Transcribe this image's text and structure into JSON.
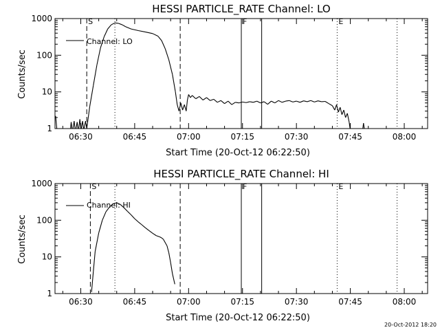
{
  "chart_data": [
    {
      "type": "line",
      "title": "HESSI PARTICLE_RATE Channel: LO",
      "xlabel": "Start Time (20-Oct-12 06:22:50)",
      "ylabel": "Counts/sec",
      "yscale": "log",
      "ylim": [
        1,
        1000
      ],
      "xlim": [
        "06:22:50",
        "08:06:30"
      ],
      "x_ticks": [
        "06:30",
        "06:45",
        "07:00",
        "07:15",
        "07:30",
        "07:45",
        "08:00"
      ],
      "y_ticks": [
        "1",
        "10",
        "100",
        "1000"
      ],
      "grid": false,
      "legend": "top-left",
      "series": [
        {
          "name": "Channel: LO",
          "color": "#000000",
          "points": [
            [
              "06:23:00",
              2.2
            ],
            [
              "06:23:20",
              1.0
            ],
            [
              "06:24:00",
              0.7
            ],
            [
              "06:27:00",
              0.7
            ],
            [
              "06:27:20",
              1.5
            ],
            [
              "06:27:40",
              0.8
            ],
            [
              "06:28:10",
              1.6
            ],
            [
              "06:28:30",
              0.8
            ],
            [
              "06:29:00",
              1.5
            ],
            [
              "06:29:20",
              0.8
            ],
            [
              "06:29:45",
              1.8
            ],
            [
              "06:30:05",
              0.9
            ],
            [
              "06:30:30",
              1.6
            ],
            [
              "06:30:50",
              0.9
            ],
            [
              "06:31:20",
              1.6
            ],
            [
              "06:31:40",
              1.0
            ],
            [
              "06:32:30",
              4
            ],
            [
              "06:33:30",
              15
            ],
            [
              "06:34:30",
              55
            ],
            [
              "06:35:30",
              160
            ],
            [
              "06:36:30",
              320
            ],
            [
              "06:37:30",
              520
            ],
            [
              "06:38:30",
              680
            ],
            [
              "06:39:30",
              760
            ],
            [
              "06:40:30",
              740
            ],
            [
              "06:41:30",
              680
            ],
            [
              "06:42:30",
              600
            ],
            [
              "06:44:00",
              520
            ],
            [
              "06:46:00",
              470
            ],
            [
              "06:48:00",
              430
            ],
            [
              "06:50:00",
              390
            ],
            [
              "06:51:30",
              330
            ],
            [
              "06:52:30",
              250
            ],
            [
              "06:53:30",
              150
            ],
            [
              "06:54:30",
              75
            ],
            [
              "06:55:30",
              30
            ],
            [
              "06:56:20",
              10
            ],
            [
              "06:56:50",
              4.5
            ],
            [
              "06:57:20",
              3.0
            ],
            [
              "06:57:50",
              5.0
            ],
            [
              "06:58:20",
              3.2
            ],
            [
              "06:58:50",
              4.5
            ],
            [
              "06:59:20",
              3.0
            ],
            [
              "06:59:40",
              6
            ],
            [
              "07:00:00",
              8.5
            ],
            [
              "07:00:30",
              7.0
            ],
            [
              "07:01:00",
              8.0
            ],
            [
              "07:02:00",
              6.5
            ],
            [
              "07:03:00",
              7.5
            ],
            [
              "07:04:00",
              6.0
            ],
            [
              "07:05:00",
              7.0
            ],
            [
              "07:06:00",
              5.8
            ],
            [
              "07:07:00",
              6.3
            ],
            [
              "07:08:00",
              5.2
            ],
            [
              "07:09:00",
              5.8
            ],
            [
              "07:10:00",
              4.8
            ],
            [
              "07:11:00",
              5.6
            ],
            [
              "07:12:00",
              4.5
            ],
            [
              "07:13:00",
              5.2
            ],
            [
              "07:14:00",
              5.0
            ],
            [
              "07:15:00",
              5.3
            ],
            [
              "07:16:00",
              5.1
            ],
            [
              "07:17:00",
              5.4
            ],
            [
              "07:18:00",
              5.2
            ],
            [
              "07:19:00",
              5.6
            ],
            [
              "07:20:00",
              5.0
            ],
            [
              "07:21:00",
              5.4
            ],
            [
              "07:22:00",
              4.6
            ],
            [
              "07:23:00",
              5.6
            ],
            [
              "07:24:00",
              5.0
            ],
            [
              "07:25:00",
              5.8
            ],
            [
              "07:26:00",
              5.2
            ],
            [
              "07:27:00",
              5.6
            ],
            [
              "07:28:00",
              5.8
            ],
            [
              "07:29:00",
              5.3
            ],
            [
              "07:30:00",
              5.6
            ],
            [
              "07:31:00",
              5.2
            ],
            [
              "07:32:00",
              5.7
            ],
            [
              "07:33:00",
              5.4
            ],
            [
              "07:34:00",
              5.8
            ],
            [
              "07:35:00",
              5.3
            ],
            [
              "07:36:00",
              5.7
            ],
            [
              "07:37:00",
              5.4
            ],
            [
              "07:38:00",
              5.5
            ],
            [
              "07:39:00",
              4.8
            ],
            [
              "07:40:00",
              4.2
            ],
            [
              "07:40:40",
              3.2
            ],
            [
              "07:41:10",
              4.5
            ],
            [
              "07:41:40",
              2.8
            ],
            [
              "07:42:10",
              3.8
            ],
            [
              "07:42:40",
              2.4
            ],
            [
              "07:43:10",
              3.2
            ],
            [
              "07:43:40",
              2.0
            ],
            [
              "07:44:10",
              2.6
            ],
            [
              "07:44:40",
              1.5
            ],
            [
              "07:45:00",
              0.9
            ],
            [
              "07:48:20",
              0.8
            ],
            [
              "07:48:40",
              1.4
            ],
            [
              "07:49:00",
              0.8
            ]
          ]
        }
      ],
      "markers": [
        {
          "time": "06:31:40",
          "style": "dashed",
          "label": "S"
        },
        {
          "time": "06:39:30",
          "style": "dotted",
          "label": ""
        },
        {
          "time": "06:57:40",
          "style": "dashed",
          "label": ""
        },
        {
          "time": "07:14:40",
          "style": "solid",
          "label": "F"
        },
        {
          "time": "07:20:20",
          "style": "solid",
          "label": ""
        },
        {
          "time": "07:41:20",
          "style": "dotted",
          "label": "E"
        },
        {
          "time": "07:58:00",
          "style": "dotted",
          "label": ""
        }
      ]
    },
    {
      "type": "line",
      "title": "HESSI PARTICLE_RATE Channel: HI",
      "xlabel": "Start Time (20-Oct-12 06:22:50)",
      "ylabel": "Counts/sec",
      "yscale": "log",
      "ylim": [
        1,
        1000
      ],
      "xlim": [
        "06:22:50",
        "08:06:30"
      ],
      "x_ticks": [
        "06:30",
        "06:45",
        "07:00",
        "07:15",
        "07:30",
        "07:45",
        "08:00"
      ],
      "y_ticks": [
        "1",
        "10",
        "100",
        "1000"
      ],
      "grid": false,
      "legend": "top-left",
      "series": [
        {
          "name": "Channel: HI",
          "color": "#000000",
          "points": [
            [
              "06:33:00",
              1.1
            ],
            [
              "06:33:30",
              4
            ],
            [
              "06:34:00",
              14
            ],
            [
              "06:35:00",
              45
            ],
            [
              "06:36:00",
              100
            ],
            [
              "06:37:00",
              170
            ],
            [
              "06:38:00",
              230
            ],
            [
              "06:39:00",
              280
            ],
            [
              "06:40:00",
              300
            ],
            [
              "06:41:00",
              270
            ],
            [
              "06:42:00",
              220
            ],
            [
              "06:43:00",
              175
            ],
            [
              "06:44:00",
              140
            ],
            [
              "06:45:00",
              110
            ],
            [
              "06:46:00",
              90
            ],
            [
              "06:47:00",
              75
            ],
            [
              "06:48:00",
              62
            ],
            [
              "06:49:00",
              52
            ],
            [
              "06:50:00",
              44
            ],
            [
              "06:51:00",
              38
            ],
            [
              "06:52:00",
              35
            ],
            [
              "06:52:30",
              33
            ],
            [
              "06:53:00",
              30
            ],
            [
              "06:54:00",
              20
            ],
            [
              "06:54:30",
              13
            ],
            [
              "06:55:00",
              7
            ],
            [
              "06:55:30",
              3.5
            ],
            [
              "06:56:10",
              1.8
            ]
          ]
        }
      ],
      "markers": [
        {
          "time": "06:32:40",
          "style": "dashed",
          "label": "S"
        },
        {
          "time": "06:39:30",
          "style": "dotted",
          "label": ""
        },
        {
          "time": "06:57:40",
          "style": "dashed",
          "label": ""
        },
        {
          "time": "07:14:40",
          "style": "solid",
          "label": "F"
        },
        {
          "time": "07:20:20",
          "style": "solid",
          "label": ""
        },
        {
          "time": "07:41:20",
          "style": "dotted",
          "label": "E"
        },
        {
          "time": "07:58:00",
          "style": "dotted",
          "label": ""
        }
      ]
    }
  ],
  "timestamp": "20-Oct-2012 18:20"
}
